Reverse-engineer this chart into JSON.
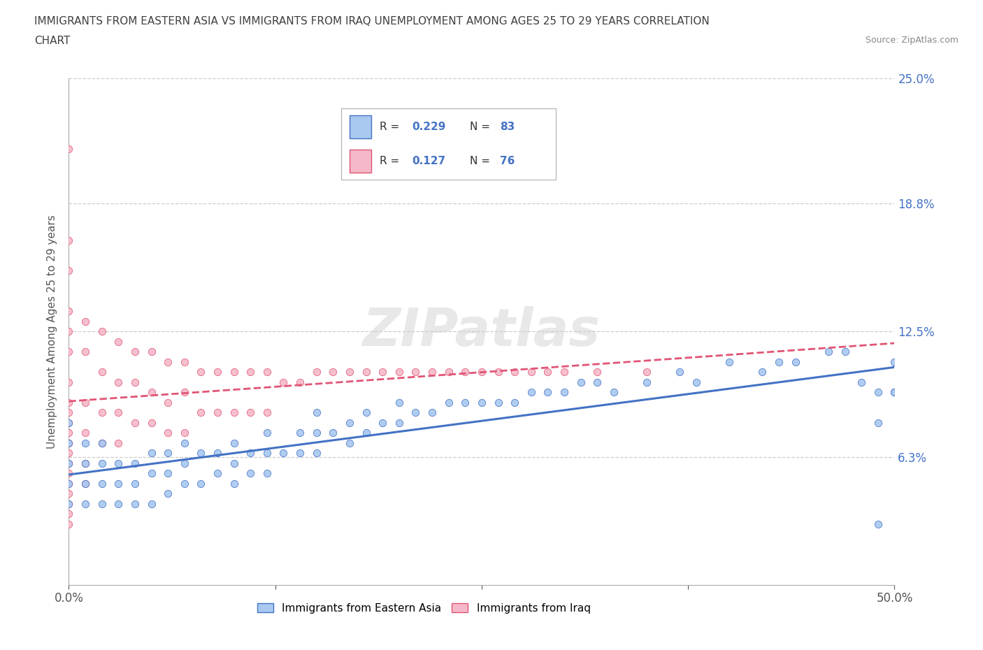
{
  "title_line1": "IMMIGRANTS FROM EASTERN ASIA VS IMMIGRANTS FROM IRAQ UNEMPLOYMENT AMONG AGES 25 TO 29 YEARS CORRELATION",
  "title_line2": "CHART",
  "source_text": "Source: ZipAtlas.com",
  "ylabel": "Unemployment Among Ages 25 to 29 years",
  "xlim": [
    0.0,
    0.5
  ],
  "ylim": [
    0.0,
    0.25
  ],
  "ytick_labels_right": [
    "25.0%",
    "18.8%",
    "12.5%",
    "6.3%"
  ],
  "ytick_vals_right": [
    0.25,
    0.188,
    0.125,
    0.063
  ],
  "gridline_y": [
    0.25,
    0.188,
    0.125,
    0.063
  ],
  "r_eastern_asia": 0.229,
  "n_eastern_asia": 83,
  "r_iraq": 0.127,
  "n_iraq": 76,
  "color_eastern_asia": "#a8c8f0",
  "color_iraq": "#f5b8c8",
  "color_line_eastern_asia": "#4472c4",
  "color_line_iraq": "#e05575",
  "legend_label_eastern_asia": "Immigrants from Eastern Asia",
  "legend_label_iraq": "Immigrants from Iraq",
  "watermark": "ZIPatlas",
  "background_color": "#ffffff",
  "title_color": "#404040",
  "axis_label_color": "#555555",
  "tick_label_color": "#4472c4",
  "eastern_asia_x": [
    0.0,
    0.0,
    0.0,
    0.0,
    0.0,
    0.01,
    0.01,
    0.01,
    0.01,
    0.02,
    0.02,
    0.02,
    0.02,
    0.03,
    0.03,
    0.03,
    0.04,
    0.04,
    0.04,
    0.05,
    0.05,
    0.05,
    0.06,
    0.06,
    0.06,
    0.07,
    0.07,
    0.07,
    0.08,
    0.08,
    0.09,
    0.09,
    0.1,
    0.1,
    0.1,
    0.11,
    0.11,
    0.12,
    0.12,
    0.12,
    0.13,
    0.14,
    0.14,
    0.15,
    0.15,
    0.15,
    0.16,
    0.17,
    0.17,
    0.18,
    0.18,
    0.19,
    0.2,
    0.2,
    0.21,
    0.22,
    0.23,
    0.24,
    0.25,
    0.26,
    0.27,
    0.28,
    0.29,
    0.3,
    0.31,
    0.32,
    0.33,
    0.35,
    0.37,
    0.38,
    0.4,
    0.42,
    0.43,
    0.44,
    0.46,
    0.47,
    0.48,
    0.49,
    0.49,
    0.49,
    0.5,
    0.5,
    0.5
  ],
  "eastern_asia_y": [
    0.04,
    0.05,
    0.06,
    0.07,
    0.08,
    0.04,
    0.05,
    0.06,
    0.07,
    0.04,
    0.05,
    0.06,
    0.07,
    0.04,
    0.05,
    0.06,
    0.04,
    0.05,
    0.06,
    0.04,
    0.055,
    0.065,
    0.045,
    0.055,
    0.065,
    0.05,
    0.06,
    0.07,
    0.05,
    0.065,
    0.055,
    0.065,
    0.05,
    0.06,
    0.07,
    0.055,
    0.065,
    0.055,
    0.065,
    0.075,
    0.065,
    0.065,
    0.075,
    0.065,
    0.075,
    0.085,
    0.075,
    0.07,
    0.08,
    0.075,
    0.085,
    0.08,
    0.08,
    0.09,
    0.085,
    0.085,
    0.09,
    0.09,
    0.09,
    0.09,
    0.09,
    0.095,
    0.095,
    0.095,
    0.1,
    0.1,
    0.095,
    0.1,
    0.105,
    0.1,
    0.11,
    0.105,
    0.11,
    0.11,
    0.115,
    0.115,
    0.1,
    0.03,
    0.08,
    0.095,
    0.095,
    0.095,
    0.11
  ],
  "iraq_x": [
    0.0,
    0.0,
    0.0,
    0.0,
    0.0,
    0.0,
    0.0,
    0.0,
    0.0,
    0.0,
    0.0,
    0.0,
    0.0,
    0.0,
    0.0,
    0.0,
    0.0,
    0.0,
    0.0,
    0.0,
    0.01,
    0.01,
    0.01,
    0.01,
    0.01,
    0.01,
    0.02,
    0.02,
    0.02,
    0.02,
    0.03,
    0.03,
    0.03,
    0.03,
    0.04,
    0.04,
    0.04,
    0.05,
    0.05,
    0.05,
    0.06,
    0.06,
    0.06,
    0.07,
    0.07,
    0.07,
    0.08,
    0.08,
    0.09,
    0.09,
    0.1,
    0.1,
    0.11,
    0.11,
    0.12,
    0.12,
    0.13,
    0.14,
    0.15,
    0.16,
    0.17,
    0.18,
    0.19,
    0.2,
    0.21,
    0.22,
    0.23,
    0.24,
    0.25,
    0.26,
    0.27,
    0.28,
    0.29,
    0.3,
    0.32,
    0.35
  ],
  "iraq_y": [
    0.215,
    0.17,
    0.155,
    0.135,
    0.125,
    0.115,
    0.1,
    0.09,
    0.085,
    0.08,
    0.075,
    0.07,
    0.065,
    0.06,
    0.055,
    0.05,
    0.045,
    0.04,
    0.035,
    0.03,
    0.13,
    0.115,
    0.09,
    0.075,
    0.06,
    0.05,
    0.125,
    0.105,
    0.085,
    0.07,
    0.12,
    0.1,
    0.085,
    0.07,
    0.115,
    0.1,
    0.08,
    0.115,
    0.095,
    0.08,
    0.11,
    0.09,
    0.075,
    0.11,
    0.095,
    0.075,
    0.105,
    0.085,
    0.105,
    0.085,
    0.105,
    0.085,
    0.105,
    0.085,
    0.105,
    0.085,
    0.1,
    0.1,
    0.105,
    0.105,
    0.105,
    0.105,
    0.105,
    0.105,
    0.105,
    0.105,
    0.105,
    0.105,
    0.105,
    0.105,
    0.105,
    0.105,
    0.105,
    0.105,
    0.105,
    0.105
  ]
}
